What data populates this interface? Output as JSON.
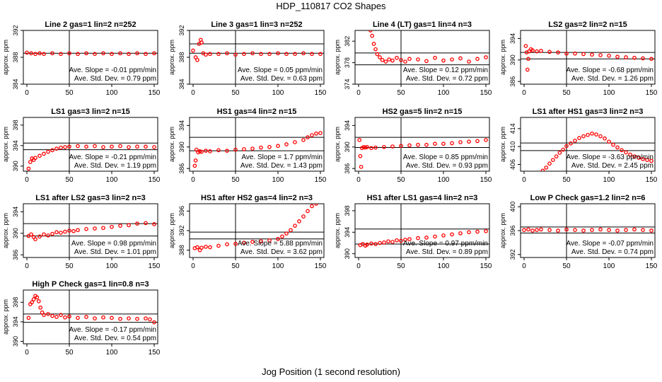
{
  "figure": {
    "title": "HDP_110817  CO2 Shapes",
    "xlabel": "Jog Position (1 second resolution)"
  },
  "style": {
    "point_color": "#ff0000",
    "axis_color": "#000000"
  },
  "chart_data": [
    {
      "type": "scatter",
      "title": "Line 2 gas=1 lin=2 n=252",
      "xlim": [
        0,
        150
      ],
      "xticks": [
        0,
        50,
        100,
        150
      ],
      "ylim": [
        384,
        392
      ],
      "yticks": [
        384,
        388,
        392
      ],
      "ylabel": "approx. ppm",
      "hlines": [
        388.6
      ],
      "vline": 50,
      "slope_text": "Ave. Slope = -0.01  ppm/min",
      "std_text": "Ave. Std. Dev. = 0.79  ppm",
      "x": [
        0,
        5,
        10,
        15,
        20,
        30,
        40,
        50,
        60,
        70,
        80,
        90,
        100,
        110,
        120,
        130,
        140,
        150
      ],
      "y": [
        388.7,
        388.6,
        388.5,
        388.6,
        388.5,
        388.6,
        388.5,
        388.6,
        388.5,
        388.6,
        388.5,
        388.6,
        388.5,
        388.6,
        388.5,
        388.6,
        388.5,
        388.6
      ]
    },
    {
      "type": "scatter",
      "title": "Line 3 gas=1 lin=3 n=252",
      "xlim": [
        0,
        150
      ],
      "xticks": [
        0,
        50,
        100,
        150
      ],
      "ylim": [
        384,
        392
      ],
      "yticks": [
        384,
        388,
        392
      ],
      "ylabel": "approx. ppm",
      "hlines": [
        388.6,
        390
      ],
      "vline": 50,
      "slope_text": "Ave. Slope = 0.05  ppm/min",
      "std_text": "Ave. Std. Dev. = 0.63  ppm",
      "x": [
        0,
        3,
        5,
        7,
        9,
        10,
        12,
        15,
        20,
        30,
        40,
        50,
        60,
        70,
        80,
        90,
        100,
        110,
        120,
        130,
        140,
        150
      ],
      "y": [
        389,
        388,
        387.6,
        390,
        390.6,
        390.2,
        388.6,
        388.4,
        388.5,
        388.5,
        388.6,
        388.4,
        388.5,
        388.6,
        388.5,
        388.5,
        388.6,
        388.5,
        388.5,
        388.6,
        388.5,
        388.5
      ]
    },
    {
      "type": "scatter",
      "title": "Line 4 (LT) gas=1 lin=4 n=3",
      "xlim": [
        0,
        150
      ],
      "xticks": [
        0,
        50,
        100,
        150
      ],
      "ylim": [
        374,
        384
      ],
      "yticks": [
        374,
        378,
        382
      ],
      "ylabel": "approx. ppm",
      "hlines": [
        379.8,
        377.6
      ],
      "vline": 50,
      "slope_text": "Ave. Slope = 0.12  ppm/min",
      "std_text": "Ave. Std. Dev. = 0.72  ppm",
      "x": [
        14,
        16,
        18,
        20,
        22,
        25,
        28,
        32,
        36,
        40,
        45,
        50,
        55,
        60,
        70,
        80,
        90,
        100,
        110,
        120,
        130,
        140,
        150
      ],
      "y": [
        384,
        383,
        381.5,
        380.5,
        379.6,
        379,
        378.5,
        378.2,
        378.6,
        378.4,
        378.9,
        378.5,
        378.2,
        378.7,
        378.6,
        378.3,
        378.9,
        378.4,
        378.6,
        378.8,
        378.2,
        378.7,
        379
      ]
    },
    {
      "type": "scatter",
      "title": "LS2 gas=2 lin=2 n=15",
      "xlim": [
        0,
        150
      ],
      "xticks": [
        0,
        50,
        100,
        150
      ],
      "ylim": [
        385.5,
        395.5
      ],
      "yticks": [
        386,
        390,
        394
      ],
      "ylabel": "approx. ppm",
      "hlines": [
        391.4,
        390.2
      ],
      "vline": 50,
      "slope_text": "Ave. Slope = -0.68  ppm/min",
      "std_text": "Ave. Std. Dev. = 1.26  ppm",
      "x": [
        2,
        3,
        4,
        5,
        6,
        8,
        10,
        15,
        20,
        30,
        40,
        50,
        60,
        70,
        80,
        90,
        100,
        110,
        120,
        130,
        140,
        150
      ],
      "y": [
        392.6,
        391.4,
        388.2,
        390.2,
        391.6,
        392,
        391.8,
        391.6,
        391.7,
        391.5,
        391.4,
        391.2,
        391.2,
        391.1,
        391,
        390.9,
        390.8,
        390.6,
        390.5,
        390.4,
        390.3,
        390.2
      ]
    },
    {
      "type": "scatter",
      "title": "LS1 gas=3 lin=2 n=15",
      "xlim": [
        0,
        150
      ],
      "xticks": [
        0,
        50,
        100,
        150
      ],
      "ylim": [
        389,
        399.5
      ],
      "yticks": [
        390,
        394,
        398
      ],
      "ylabel": "approx. ppm",
      "hlines": [
        394.5,
        393.2
      ],
      "vline": 50,
      "slope_text": "Ave. Slope = -0.21  ppm/min",
      "std_text": "Ave. Std. Dev. = 1.19  ppm",
      "x": [
        2,
        4,
        6,
        8,
        10,
        15,
        20,
        25,
        30,
        35,
        40,
        45,
        50,
        60,
        70,
        80,
        90,
        100,
        110,
        120,
        130,
        140,
        150
      ],
      "y": [
        389.5,
        390.8,
        391.5,
        391.2,
        391.6,
        392,
        392.4,
        392.8,
        393.1,
        393.4,
        393.6,
        393.7,
        393.8,
        393.9,
        393.8,
        393.9,
        393.7,
        393.8,
        393.9,
        393.7,
        393.8,
        393.8,
        393.7
      ]
    },
    {
      "type": "scatter",
      "title": "HS1 gas=4 lin=2 n=15",
      "xlim": [
        0,
        150
      ],
      "xticks": [
        0,
        50,
        100,
        150
      ],
      "ylim": [
        385.5,
        395.5
      ],
      "yticks": [
        386,
        390,
        394
      ],
      "ylabel": "approx. ppm",
      "hlines": [
        391.8,
        389.3
      ],
      "vline": 50,
      "slope_text": "Ave. Slope = 1.7  ppm/min",
      "std_text": "Ave. Std. Dev. = 1.43  ppm",
      "x": [
        2,
        3,
        4,
        6,
        8,
        10,
        15,
        20,
        30,
        40,
        50,
        60,
        70,
        80,
        90,
        100,
        110,
        120,
        130,
        135,
        140,
        145,
        150
      ],
      "y": [
        386.5,
        387.5,
        389.5,
        389,
        389.2,
        389.1,
        389.3,
        389.2,
        389.4,
        389.3,
        389.5,
        389.6,
        389.7,
        389.9,
        390,
        390.2,
        390.5,
        390.9,
        391.3,
        391.8,
        392.2,
        392.5,
        392.6
      ]
    },
    {
      "type": "scatter",
      "title": "HS2 gas=5 lin=2 n=15",
      "xlim": [
        0,
        150
      ],
      "xticks": [
        0,
        50,
        100,
        150
      ],
      "ylim": [
        385.5,
        395.5
      ],
      "yticks": [
        386,
        390,
        394
      ],
      "ylabel": "approx. ppm",
      "hlines": [
        391.8,
        389.9
      ],
      "vline": 50,
      "slope_text": "Ave. Slope = 0.85  ppm/min",
      "std_text": "Ave. Std. Dev. = 0.93  ppm",
      "x": [
        1,
        2,
        3,
        4,
        6,
        8,
        10,
        15,
        20,
        30,
        40,
        50,
        60,
        70,
        80,
        90,
        100,
        110,
        120,
        130,
        140,
        150
      ],
      "y": [
        391.3,
        388.3,
        386.3,
        389.8,
        390,
        389.9,
        390,
        389.8,
        389.9,
        390,
        390.1,
        390.2,
        390.3,
        390.4,
        390.4,
        390.6,
        390.6,
        390.7,
        390.9,
        391,
        391.1,
        391.3
      ]
    },
    {
      "type": "scatter",
      "title": "LS1 after HS1 gas=3 lin=2 n=3",
      "xlim": [
        0,
        150
      ],
      "xticks": [
        0,
        50,
        100,
        150
      ],
      "ylim": [
        404.5,
        416.5
      ],
      "yticks": [
        406,
        410,
        414
      ],
      "ylabel": "approx. ppm",
      "hlines": [
        410.8,
        409.1
      ],
      "vline": 50,
      "slope_text": "Ave. Slope = -3.63  ppm/min",
      "std_text": "Ave. Std. Dev. = 2.45  ppm",
      "x": [
        22,
        26,
        30,
        34,
        38,
        42,
        46,
        50,
        55,
        60,
        65,
        70,
        75,
        80,
        85,
        90,
        95,
        100,
        105,
        110,
        115,
        120,
        125,
        130,
        135,
        140,
        145,
        150
      ],
      "y": [
        404.6,
        405.3,
        406.2,
        407,
        407.8,
        408.6,
        409.3,
        410.1,
        410.7,
        411.3,
        411.9,
        412.3,
        412.6,
        412.9,
        412.7,
        412.3,
        411.8,
        411.1,
        410.4,
        409.8,
        409.2,
        408.7,
        408.2,
        407.8,
        407.5,
        407.2,
        407,
        406.8
      ]
    },
    {
      "type": "scatter",
      "title": "LS1 after LS2 gas=3 lin=2 n=3",
      "xlim": [
        0,
        150
      ],
      "xticks": [
        0,
        50,
        100,
        150
      ],
      "ylim": [
        385.5,
        395.5
      ],
      "yticks": [
        386,
        390,
        394
      ],
      "ylabel": "approx. ppm",
      "hlines": [
        391.8,
        389.5
      ],
      "vline": 50,
      "slope_text": "Ave. Slope = 0.98  ppm/min",
      "std_text": "Ave. Std. Dev. = 1.01  ppm",
      "x": [
        2,
        5,
        8,
        10,
        15,
        20,
        25,
        30,
        35,
        40,
        45,
        50,
        55,
        60,
        70,
        80,
        90,
        100,
        110,
        120,
        130,
        140,
        150
      ],
      "y": [
        389.5,
        389.8,
        389.3,
        388.9,
        389.4,
        389.8,
        389.6,
        389.9,
        390.2,
        390.1,
        390.3,
        390.5,
        390.4,
        390.6,
        390.8,
        390.9,
        391,
        391.2,
        391.4,
        391.5,
        391.8,
        391.9,
        391.7
      ]
    },
    {
      "type": "scatter",
      "title": "HS1 after HS2 gas=4 lin=2 n=3",
      "xlim": [
        0,
        150
      ],
      "xticks": [
        0,
        50,
        100,
        150
      ],
      "ylim": [
        386.5,
        397.5
      ],
      "yticks": [
        388,
        392,
        396
      ],
      "ylabel": "approx. ppm",
      "hlines": [
        391.7,
        390.3
      ],
      "vline": 50,
      "slope_text": "Ave. Slope = 5.88  ppm/min",
      "std_text": "Ave. Std. Dev. = 3.62  ppm",
      "x": [
        2,
        5,
        8,
        10,
        15,
        20,
        30,
        40,
        50,
        60,
        70,
        80,
        90,
        100,
        105,
        110,
        115,
        120,
        125,
        130,
        135,
        140,
        145
      ],
      "y": [
        388.4,
        388.6,
        388,
        388.5,
        388.7,
        388.6,
        388.9,
        389.2,
        389.3,
        389.5,
        389.7,
        389.8,
        390,
        390.3,
        390.8,
        391.4,
        392.1,
        393,
        393.9,
        394.9,
        396,
        397,
        397.5
      ]
    },
    {
      "type": "scatter",
      "title": "HS1 after LS1 gas=4 lin=2 n=3",
      "xlim": [
        0,
        150
      ],
      "xticks": [
        0,
        50,
        100,
        150
      ],
      "ylim": [
        389.3,
        399.3
      ],
      "yticks": [
        390,
        394,
        398
      ],
      "ylabel": "approx. ppm",
      "hlines": [
        394.6,
        391.8
      ],
      "vline": 50,
      "slope_text": "Ave. Slope = 0.97  ppm/min",
      "std_text": "Ave. Std. Dev. = 0.89  ppm",
      "x": [
        2,
        5,
        8,
        10,
        15,
        20,
        25,
        30,
        35,
        40,
        45,
        50,
        55,
        60,
        70,
        80,
        90,
        100,
        110,
        120,
        130,
        140,
        150
      ],
      "y": [
        391.6,
        391.8,
        391.5,
        391.7,
        391.9,
        391.8,
        392,
        392.1,
        392.3,
        392.2,
        392.5,
        392.4,
        392.6,
        392.7,
        392.9,
        393,
        393.2,
        393.4,
        393.6,
        393.8,
        394,
        394.1,
        394.2
      ]
    },
    {
      "type": "scatter",
      "title": "Low P Check gas=1.2 lin=2 n=6",
      "xlim": [
        0,
        150
      ],
      "xticks": [
        0,
        50,
        100,
        150
      ],
      "ylim": [
        391.5,
        400.5
      ],
      "yticks": [
        392,
        396,
        400
      ],
      "ylabel": "approx. ppm",
      "hlines": [
        396.6,
        395.6
      ],
      "vline": 50,
      "slope_text": "Ave. Slope = -0.07  ppm/min",
      "std_text": "Ave. Std. Dev. = 0.74  ppm",
      "x": [
        0,
        5,
        10,
        15,
        20,
        30,
        40,
        50,
        60,
        70,
        80,
        90,
        100,
        110,
        120,
        130,
        140,
        150
      ],
      "y": [
        396.1,
        396.2,
        396,
        396.1,
        396.2,
        396.1,
        396,
        396.2,
        396.1,
        396,
        396.1,
        396.2,
        396.1,
        396,
        396.1,
        396.2,
        396.1,
        396
      ]
    },
    {
      "type": "scatter",
      "title": "High P Check gas=1 lin=0.8 n=3",
      "xlim": [
        0,
        150
      ],
      "xticks": [
        0,
        50,
        100,
        150
      ],
      "ylim": [
        389.5,
        400.5
      ],
      "yticks": [
        390,
        394,
        398
      ],
      "ylabel": "approx. ppm",
      "hlines": [
        395.6,
        393.9
      ],
      "vline": 50,
      "slope_text": "Ave. Slope = -0.17  ppm/min",
      "std_text": "Ave. Std. Dev. = 0.54  ppm",
      "x": [
        2,
        4,
        6,
        8,
        10,
        12,
        14,
        16,
        18,
        20,
        25,
        30,
        35,
        40,
        45,
        50,
        60,
        70,
        80,
        90,
        100,
        110,
        120,
        130,
        140,
        145,
        150
      ],
      "y": [
        394.8,
        397.6,
        398,
        398.6,
        399.3,
        399,
        398.2,
        396.9,
        395.9,
        395.4,
        395.6,
        395.2,
        395,
        395.4,
        394.9,
        395.1,
        394.8,
        395,
        394.7,
        394.9,
        394.8,
        394.6,
        394.7,
        394.6,
        394.7,
        394.5,
        393.9
      ]
    }
  ]
}
